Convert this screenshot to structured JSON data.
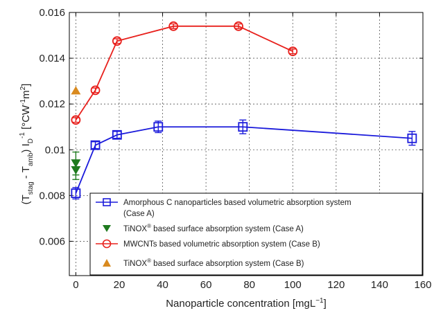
{
  "chart_data": {
    "type": "line",
    "xlabel_main": "Nanoparticle concentration [mgL",
    "xlabel_sup": "−1",
    "xlabel_end": "]",
    "ylabel_parts": {
      "t1": "(T",
      "s1": "stag",
      "t2": " - T",
      "s2": "amb",
      "t3": ") I",
      "s3": "D",
      "p3": "-1",
      "t4": " [°CW",
      "p4": "-1",
      "t5": "m",
      "p5": "2",
      "t6": "]"
    },
    "xlim": [
      -3,
      160
    ],
    "ylim": [
      0.0045,
      0.016
    ],
    "xticks": [
      0,
      20,
      40,
      60,
      80,
      100,
      120,
      140,
      160
    ],
    "xtick_labels": [
      "0",
      "20",
      "40",
      "60",
      "80",
      "100",
      "120",
      "140",
      "160"
    ],
    "yticks": [
      0.006,
      0.008,
      0.01,
      0.012,
      0.014,
      0.016
    ],
    "ytick_labels": [
      "0.006",
      "0.008",
      "0.01",
      "0.012",
      "0.014",
      "0.016"
    ],
    "grid": true,
    "legend_position": "bottom-center",
    "series": [
      {
        "name_lines": [
          "Amorphous C nanoparticles based volumetric absorption system",
          "(Case A)"
        ],
        "marker": "square",
        "color": "#1a1adb",
        "connected": true,
        "x": [
          0,
          9,
          19,
          38,
          77,
          155
        ],
        "y": [
          0.0081,
          0.0102,
          0.01065,
          0.011,
          0.011,
          0.0105
        ],
        "err": [
          0.00025,
          0.00015,
          0.00015,
          0.00025,
          0.0003,
          0.0003
        ]
      },
      {
        "name_lines": [
          "TiNOX",
          "®",
          " based surface absorption system (Case A)"
        ],
        "marker": "triangle-down",
        "color": "#1e7a1e",
        "connected": false,
        "x": [
          0,
          0
        ],
        "y": [
          0.0094,
          0.0091
        ],
        "err": [
          0.0005,
          0.0004
        ]
      },
      {
        "name_lines": [
          "MWCNTs based volumetric absorption system (Case B)"
        ],
        "marker": "circle",
        "color": "#e8201c",
        "connected": true,
        "x": [
          0,
          9,
          19,
          45,
          75,
          100
        ],
        "y": [
          0.0113,
          0.0126,
          0.01475,
          0.0154,
          0.0154,
          0.0143
        ],
        "err": [
          0.0001,
          0.0001,
          0.0001,
          0.0001,
          0.0001,
          0.0001
        ]
      },
      {
        "name_lines": [
          "TiNOX",
          "®",
          " based surface absorption system (Case B)"
        ],
        "marker": "triangle-up",
        "color": "#d98a1f",
        "connected": false,
        "x": [
          0
        ],
        "y": [
          0.0126
        ],
        "err": [
          0
        ]
      }
    ]
  }
}
